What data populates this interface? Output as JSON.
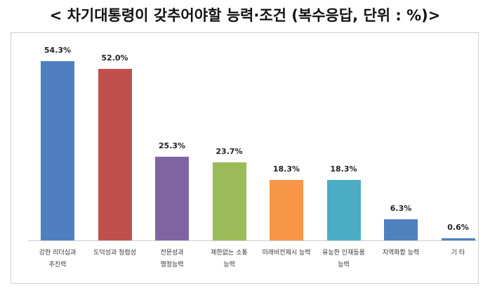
{
  "chart_data": {
    "type": "bar",
    "title": "< 차기대통령이 갖추어야할 능력·조건 (복수응답, 단위 : %)>",
    "categories": [
      "강한 리더십과\n추진력",
      "도덕성과 청렴성",
      "전문성과\n행정능력",
      "제한없는 소통\n능력",
      "미래비전제시 능력",
      "유능한 인재등용\n능력",
      "지역화합 능력",
      "기 타"
    ],
    "values": [
      54.3,
      52.0,
      25.3,
      23.7,
      18.3,
      18.3,
      6.3,
      0.6
    ],
    "value_labels": [
      "54.3%",
      "52.0%",
      "25.3%",
      "23.7%",
      "18.3%",
      "18.3%",
      "6.3%",
      "0.6%"
    ],
    "colors": [
      "#4f7fc0",
      "#c0504d",
      "#8064a2",
      "#9bbb59",
      "#f79646",
      "#4bacc6",
      "#4f81bd",
      "#4f81bd"
    ]
  }
}
